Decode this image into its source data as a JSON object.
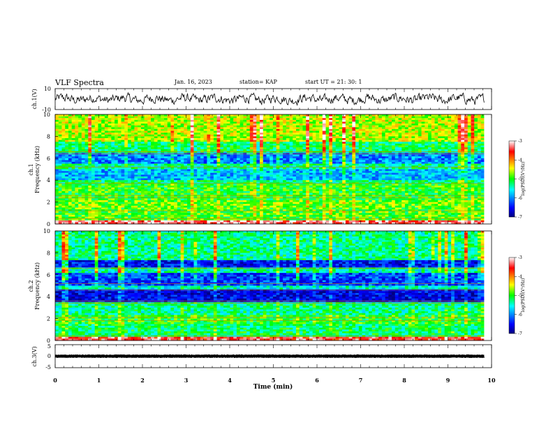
{
  "header": {
    "title": "VLF Spectra",
    "date": "Jan. 16, 2023",
    "station": "station= KAP",
    "start": "start  UT =   21: 30: 1"
  },
  "chart_data": [
    {
      "type": "line",
      "name": "waveform-ch1",
      "ylabel": "ch.1(V)",
      "ylim": [
        -10,
        10
      ],
      "yticks": [
        "10",
        "-10"
      ],
      "xlim": [
        0,
        10
      ],
      "description_values": {
        "amplitude_range": [
          -6,
          6
        ],
        "duration_min": 9.83
      }
    },
    {
      "type": "heatmap",
      "name": "spectrogram-ch1",
      "ylabel_line1": "ch.1",
      "ylabel_line2": "Frequency (kHz)",
      "ylim": [
        0,
        10
      ],
      "yticks": [
        "0",
        "2",
        "4",
        "6",
        "8",
        "10"
      ],
      "xlim": [
        0,
        10
      ],
      "colorbar": {
        "label": "log(PSD)(V²/Hz)",
        "range": [
          -7,
          -3
        ],
        "ticks": [
          "-3",
          "-4",
          "-5",
          "-6",
          "-7"
        ]
      },
      "bands_khz": [
        {
          "from": 0.0,
          "to": 0.3,
          "level": -3.3
        },
        {
          "from": 0.3,
          "to": 1.5,
          "level": -4.9
        },
        {
          "from": 1.5,
          "to": 2.2,
          "level": -4.8
        },
        {
          "from": 2.2,
          "to": 3.6,
          "level": -5.0
        },
        {
          "from": 3.6,
          "to": 4.0,
          "level": -5.2
        },
        {
          "from": 4.0,
          "to": 5.0,
          "level": -5.8
        },
        {
          "from": 5.0,
          "to": 5.5,
          "level": -5.3
        },
        {
          "from": 5.5,
          "to": 6.5,
          "level": -6.0
        },
        {
          "from": 6.5,
          "to": 7.5,
          "level": -5.2
        },
        {
          "from": 7.5,
          "to": 10.0,
          "level": -4.6
        }
      ],
      "lines_khz": [
        0.5,
        1.2,
        2.4,
        2.6,
        3.7,
        5.2,
        6.4,
        6.6
      ]
    },
    {
      "type": "heatmap",
      "name": "spectrogram-ch2",
      "ylabel_line1": "ch.2",
      "ylabel_line2": "Frequency (kHz)",
      "ylim": [
        0,
        10
      ],
      "yticks": [
        "0",
        "2",
        "4",
        "6",
        "8",
        "10"
      ],
      "xlim": [
        0,
        10
      ],
      "colorbar": {
        "label": "log(PSD)(V²/Hz)",
        "range": [
          -7,
          -3
        ],
        "ticks": [
          "-3",
          "-4",
          "-5",
          "-6",
          "-7"
        ]
      },
      "bands_khz": [
        {
          "from": 0.0,
          "to": 0.3,
          "level": -3.5
        },
        {
          "from": 0.3,
          "to": 1.5,
          "level": -5.2
        },
        {
          "from": 1.5,
          "to": 2.3,
          "level": -5.0
        },
        {
          "from": 2.3,
          "to": 3.5,
          "level": -5.3
        },
        {
          "from": 3.5,
          "to": 4.6,
          "level": -6.6
        },
        {
          "from": 4.6,
          "to": 5.0,
          "level": -5.5
        },
        {
          "from": 5.0,
          "to": 6.2,
          "level": -6.3
        },
        {
          "from": 6.2,
          "to": 6.6,
          "level": -5.4
        },
        {
          "from": 6.6,
          "to": 7.4,
          "level": -6.5
        },
        {
          "from": 7.4,
          "to": 10.0,
          "level": -5.3
        }
      ],
      "lines_khz": [
        0.4,
        1.8,
        2.1,
        3.4,
        3.6,
        4.6,
        5.2,
        6.6
      ]
    },
    {
      "type": "line",
      "name": "waveform-ch3",
      "ylabel": "ch.3(V)",
      "ylim": [
        -5,
        5
      ],
      "yticks": [
        "5",
        "0",
        "-5"
      ],
      "xlim": [
        0,
        10
      ],
      "xlabel": "Time  (min)",
      "xticks": [
        "0",
        "1",
        "2",
        "3",
        "4",
        "5",
        "6",
        "7",
        "8",
        "9",
        "10"
      ],
      "description_values": {
        "amplitude_range": [
          -0.8,
          0.8
        ],
        "duration_min": 9.83
      }
    }
  ]
}
